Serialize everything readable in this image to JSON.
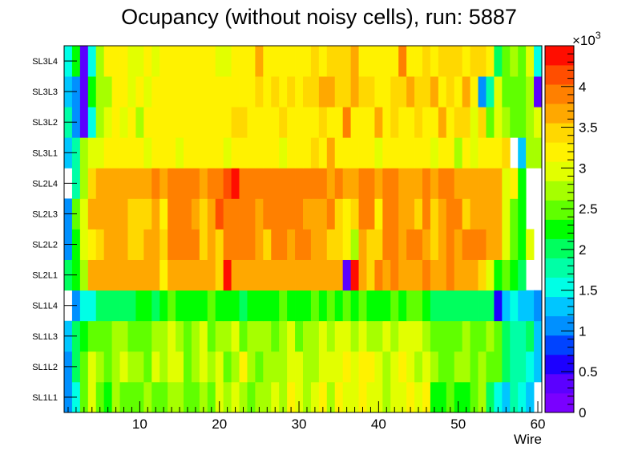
{
  "chart_data": {
    "type": "heatmap",
    "title": "Ocupancy (without noisy cells), run: 5887",
    "xlabel": "Wire",
    "ylabel": "",
    "xlim": [
      0.5,
      60.5
    ],
    "x_ticks": [
      "10",
      "20",
      "30",
      "40",
      "50",
      "60"
    ],
    "x_tick_values": [
      10,
      20,
      30,
      40,
      50,
      60
    ],
    "rows": [
      "SL1L1",
      "SL1L2",
      "SL1L3",
      "SL1L4",
      "SL2L1",
      "SL2L2",
      "SL2L3",
      "SL2L4",
      "SL3L1",
      "SL3L2",
      "SL3L3",
      "SL3L4"
    ],
    "colorbar": {
      "min": 0,
      "max": 4500,
      "multiplier": "×10",
      "exponent": "3",
      "tick_labels": [
        "0",
        "0.5",
        "1",
        "1.5",
        "2",
        "2.5",
        "3",
        "3.5",
        "4"
      ],
      "tick_values": [
        0,
        500,
        1000,
        1500,
        2000,
        2500,
        3000,
        3500,
        4000
      ]
    },
    "palette": [
      "#7a00ff",
      "#5b00ff",
      "#1c00ff",
      "#0043ff",
      "#0090ff",
      "#00c6ff",
      "#00ffe6",
      "#00ffa6",
      "#00ff5e",
      "#00ff00",
      "#60ff00",
      "#a6ff00",
      "#e2ff00",
      "#fff200",
      "#ffd800",
      "#ffa800",
      "#ff8000",
      "#ff4e00",
      "#ff0d00"
    ],
    "row_values": {
      "SL1L1": [
        1000,
        1600,
        2500,
        2900,
        2600,
        2300,
        2800,
        2500,
        2400,
        2500,
        2700,
        2500,
        2600,
        2800,
        2700,
        2400,
        2600,
        2800,
        2600,
        2900,
        2700,
        3000,
        2700,
        2600,
        2800,
        2700,
        2900,
        2700,
        3100,
        2900,
        2800,
        3000,
        3300,
        2800,
        3100,
        3000,
        2900,
        3100,
        2900,
        3000,
        2800,
        2900,
        3000,
        3200,
        2900,
        3100,
        2300,
        2200,
        2400,
        2300,
        2200,
        2500,
        2800,
        2100,
        1500,
        1400,
        1800,
        1500,
        1300,
        null
      ],
      "SL1L2": [
        1100,
        1900,
        2400,
        2900,
        2800,
        2600,
        2700,
        2900,
        2800,
        2700,
        2600,
        2900,
        2800,
        3000,
        2900,
        2600,
        2700,
        2900,
        2800,
        3000,
        2600,
        2800,
        3100,
        2700,
        2600,
        2800,
        2800,
        2700,
        3000,
        2900,
        2800,
        2700,
        3000,
        2900,
        3000,
        3100,
        2900,
        3300,
        3200,
        2900,
        2800,
        3000,
        3100,
        3000,
        2800,
        2900,
        2700,
        2500,
        2600,
        2700,
        2800,
        2600,
        2700,
        2600,
        2400,
        1900,
        1700,
        1800,
        1500,
        1200
      ],
      "SL1L3": [
        1300,
        1900,
        2200,
        2500,
        2600,
        2600,
        2800,
        2700,
        2500,
        2600,
        2400,
        2800,
        2700,
        2900,
        2800,
        2500,
        2700,
        2900,
        2600,
        2800,
        2700,
        2900,
        2600,
        2800,
        2800,
        2700,
        2600,
        2800,
        2900,
        2600,
        2700,
        2800,
        3000,
        2800,
        2900,
        3000,
        2800,
        2900,
        2800,
        2700,
        2900,
        2800,
        3000,
        2900,
        2900,
        2800,
        2600,
        2500,
        2600,
        2500,
        2700,
        2600,
        2600,
        2700,
        2400,
        2000,
        1800,
        1700,
        1900,
        1200
      ],
      "SL1L4": [
        null,
        1100,
        1500,
        1500,
        2000,
        2000,
        2000,
        2000,
        1900,
        2300,
        2200,
        2100,
        2200,
        2400,
        2200,
        2300,
        2200,
        2200,
        2400,
        2300,
        2300,
        2300,
        2100,
        2200,
        2200,
        2200,
        2300,
        2400,
        2200,
        2300,
        2300,
        2500,
        2200,
        2400,
        2300,
        2400,
        2300,
        2400,
        2300,
        2300,
        2200,
        2400,
        2300,
        2400,
        2500,
        2200,
        2000,
        2000,
        1900,
        2000,
        1900,
        2000,
        1900,
        1900,
        700,
        1200,
        1500,
        1400,
        1400,
        1000
      ],
      "SL2L1": [
        2000,
        2300,
        2700,
        3600,
        3600,
        3600,
        3600,
        3600,
        3700,
        3700,
        3700,
        3600,
        3300,
        3700,
        3700,
        3700,
        3700,
        3700,
        3600,
        3500,
        4300,
        3700,
        3700,
        3700,
        3700,
        3700,
        3700,
        3700,
        3700,
        3700,
        3700,
        3700,
        3700,
        3700,
        3700,
        300,
        4600,
        3700,
        3400,
        3800,
        3600,
        3800,
        3700,
        3700,
        3700,
        3800,
        3600,
        3700,
        3800,
        3600,
        3700,
        3700,
        3500,
        3000,
        2300,
        2600,
        2300,
        2000,
        null,
        null
      ],
      "SL2L2": [
        1000,
        2300,
        2900,
        3200,
        3500,
        3700,
        3700,
        3600,
        3500,
        3500,
        3600,
        3700,
        3500,
        3900,
        4000,
        3800,
        3800,
        3500,
        3700,
        3500,
        3900,
        3900,
        3800,
        3900,
        3700,
        3500,
        3900,
        3800,
        3600,
        3900,
        3800,
        3700,
        3600,
        3400,
        3500,
        3300,
        2800,
        3700,
        3400,
        3500,
        3800,
        3800,
        3700,
        3900,
        3900,
        3600,
        3500,
        3700,
        3800,
        3700,
        3800,
        3800,
        3800,
        3700,
        3600,
        2900,
        2600,
        2200,
        3000,
        null
      ],
      "SL2L3": [
        1000,
        2400,
        2900,
        3700,
        3600,
        3600,
        3600,
        3600,
        3500,
        3500,
        3500,
        3700,
        3200,
        3800,
        3900,
        3800,
        3700,
        3500,
        3600,
        4200,
        3800,
        3900,
        3900,
        3900,
        3600,
        3800,
        3900,
        3800,
        3900,
        3800,
        3700,
        3600,
        3700,
        3900,
        3400,
        3300,
        3400,
        3900,
        3900,
        3300,
        3800,
        3800,
        3600,
        3600,
        3500,
        3800,
        3500,
        3700,
        3900,
        3800,
        3500,
        3700,
        3600,
        3600,
        3600,
        2900,
        2500,
        2200,
        null,
        null
      ],
      "SL2L4": [
        null,
        1700,
        2700,
        3400,
        3600,
        3600,
        3600,
        3600,
        3600,
        3600,
        3600,
        3800,
        3600,
        3900,
        3900,
        3800,
        3800,
        3600,
        3800,
        3900,
        4100,
        4400,
        4000,
        3900,
        3800,
        3800,
        3900,
        3800,
        3800,
        3900,
        3800,
        3900,
        3800,
        3600,
        3900,
        3700,
        3600,
        3800,
        3800,
        3600,
        3800,
        3800,
        3600,
        3600,
        3700,
        3800,
        3700,
        3800,
        3800,
        3600,
        3700,
        3600,
        3600,
        3600,
        3600,
        3000,
        3300,
        2300,
        null,
        null
      ],
      "SL3L1": [
        1300,
        1800,
        2700,
        2900,
        3000,
        3100,
        3100,
        3100,
        3200,
        3100,
        3000,
        3200,
        3300,
        3200,
        2900,
        3200,
        3100,
        3200,
        3100,
        3300,
        3000,
        3200,
        3300,
        3200,
        3300,
        3100,
        3200,
        2900,
        3300,
        3200,
        3300,
        3400,
        3100,
        3700,
        3200,
        3100,
        3200,
        3300,
        3200,
        3000,
        3100,
        3300,
        3300,
        3300,
        3200,
        3300,
        3000,
        3100,
        3200,
        2700,
        3100,
        3000,
        3200,
        3300,
        3100,
        3400,
        null,
        1300,
        2700,
        2800
      ],
      "SL3L2": [
        1700,
        1000,
        400,
        1500,
        2700,
        2900,
        3100,
        2900,
        3100,
        2700,
        3100,
        3300,
        3200,
        3200,
        3100,
        3300,
        3300,
        3100,
        3300,
        3300,
        3200,
        3400,
        3400,
        3300,
        3200,
        3300,
        3200,
        3400,
        3200,
        3300,
        3300,
        3300,
        3500,
        3300,
        3300,
        3800,
        3100,
        3200,
        3300,
        3700,
        3300,
        3400,
        3200,
        3300,
        3500,
        3300,
        3300,
        3600,
        3100,
        3400,
        3500,
        2900,
        3400,
        2500,
        2900,
        2700,
        2600,
        2600,
        2700,
        2900
      ],
      "SL3L3": [
        1200,
        1100,
        400,
        2300,
        2700,
        2800,
        3100,
        3100,
        3000,
        3200,
        3000,
        3200,
        3300,
        3100,
        3200,
        3300,
        3300,
        3200,
        3100,
        3200,
        3300,
        3300,
        3200,
        3300,
        3400,
        3300,
        3500,
        3300,
        3400,
        3200,
        3500,
        3400,
        3600,
        3600,
        3500,
        3400,
        3700,
        3400,
        3500,
        3200,
        3300,
        3500,
        3400,
        3600,
        3500,
        3400,
        3700,
        3300,
        3400,
        3300,
        3600,
        3100,
        1100,
        1800,
        2900,
        2600,
        2600,
        2500,
        2800,
        400
      ],
      "SL3L4": [
        1500,
        2300,
        400,
        1600,
        2800,
        3100,
        3100,
        3100,
        3000,
        3000,
        3100,
        3000,
        3100,
        3200,
        3100,
        3100,
        3200,
        3100,
        3100,
        3000,
        3000,
        3100,
        3300,
        3100,
        3600,
        3100,
        3100,
        3200,
        3300,
        3100,
        3100,
        3400,
        3300,
        3500,
        3400,
        3400,
        3700,
        3200,
        3300,
        3300,
        3300,
        3300,
        3800,
        3300,
        3200,
        3500,
        3300,
        3400,
        3500,
        3400,
        3300,
        3400,
        3400,
        3300,
        2000,
        2500,
        2700,
        2600,
        3000,
        1500
      ]
    }
  }
}
